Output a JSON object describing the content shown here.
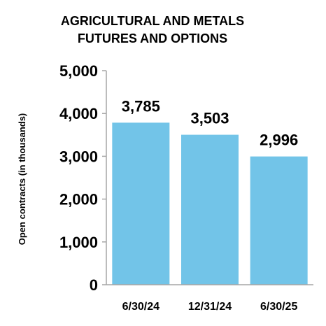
{
  "chart_data": {
    "type": "bar",
    "title_lines": [
      "AGRICULTURAL AND METALS",
      "FUTURES AND OPTIONS"
    ],
    "xlabel": "",
    "ylabel": "Open contracts (in thousands)",
    "categories": [
      "6/30/24",
      "12/31/24",
      "6/30/25"
    ],
    "values": [
      3785,
      3503,
      2996
    ],
    "data_labels": [
      "3,785",
      "3,503",
      "2,996"
    ],
    "ylim": [
      0,
      5000
    ],
    "yticks": [
      0,
      1000,
      2000,
      3000,
      4000,
      5000
    ],
    "ytick_labels": [
      "0",
      "1,000",
      "2,000",
      "3,000",
      "4,000",
      "5,000"
    ],
    "grid": false,
    "legend": "none",
    "bar_color": "#72c4e8",
    "axis_color": "#a6a6a6"
  }
}
